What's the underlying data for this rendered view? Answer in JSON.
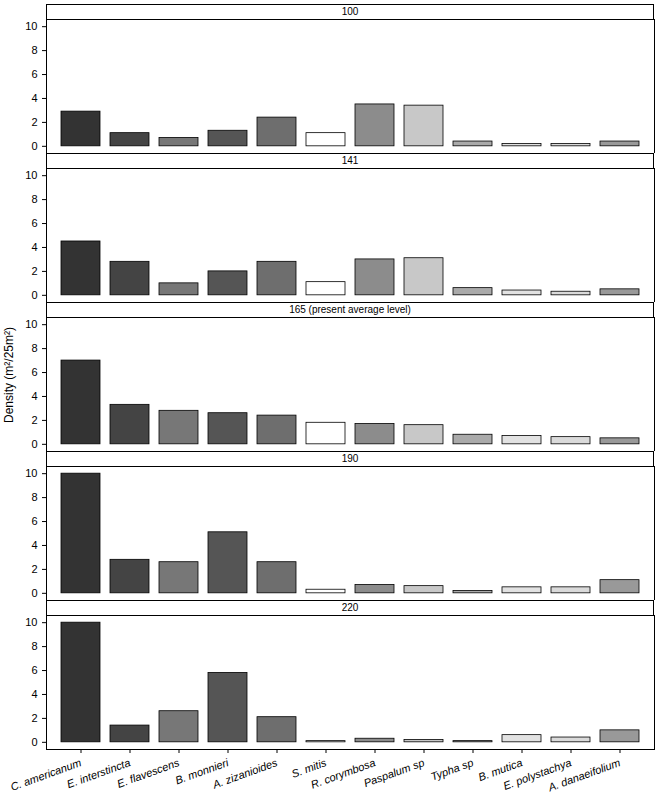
{
  "chart_data": {
    "type": "bar",
    "y_label": "Density (m²/25m²)",
    "categories": [
      "C. americanum",
      "E. interstincta",
      "E. flavescens",
      "B. monnieri",
      "A. zizanioides",
      "S. mitis",
      "R. corymbosa",
      "Paspalum sp",
      "Typha sp",
      "B. mutica",
      "E. polystachya",
      "A. danaeifolium"
    ],
    "colors": [
      "#333333",
      "#444444",
      "#777777",
      "#555555",
      "#6e6e6e",
      "#ffffff",
      "#8c8c8c",
      "#c8c8c8",
      "#aaaaaa",
      "#e2e2e2",
      "#dadada",
      "#999999"
    ],
    "series": [
      {
        "name": "100",
        "values": [
          2.9,
          1.1,
          0.7,
          1.3,
          2.4,
          1.1,
          3.5,
          3.4,
          0.4,
          0.2,
          0.2,
          0.4
        ]
      },
      {
        "name": "141",
        "values": [
          4.5,
          2.8,
          1.0,
          2.0,
          2.8,
          1.1,
          3.0,
          3.1,
          0.6,
          0.4,
          0.3,
          0.5
        ]
      },
      {
        "name": "165 (present average level)",
        "values": [
          7.0,
          3.3,
          2.8,
          2.6,
          2.4,
          1.8,
          1.7,
          1.6,
          0.8,
          0.7,
          0.6,
          0.5
        ]
      },
      {
        "name": "190",
        "values": [
          10.0,
          2.8,
          2.6,
          5.1,
          2.6,
          0.3,
          0.7,
          0.6,
          0.2,
          0.5,
          0.5,
          1.1
        ]
      },
      {
        "name": "220",
        "values": [
          10.0,
          1.4,
          2.6,
          5.8,
          2.1,
          0.1,
          0.3,
          0.2,
          0.1,
          0.6,
          0.4,
          1.0
        ]
      }
    ],
    "ylim": [
      -0.6,
      10.6
    ],
    "yticks": [
      0,
      2,
      4,
      6,
      8,
      10
    ]
  }
}
